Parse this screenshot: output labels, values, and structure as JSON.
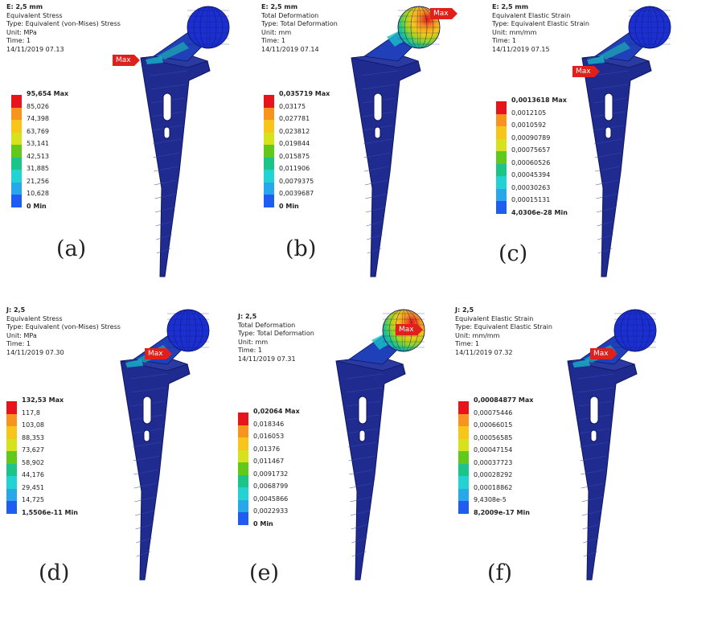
{
  "colors": {
    "legend": [
      "#e8141b",
      "#f7941d",
      "#f8c51a",
      "#d6e21c",
      "#62c81c",
      "#1bc58a",
      "#23d3d3",
      "#28a7ea",
      "#1e5cf2",
      "#0d22d8"
    ],
    "metal": "#1f2b8e",
    "mesh": "#3a49b3"
  },
  "panels": [
    {
      "id": "a",
      "header": [
        "E: 2,5 mm",
        "Equivalent Stress",
        "Type: Equivalent (von-Mises) Stress",
        "Unit: MPa",
        "Time: 1",
        "14/11/2019 07.13"
      ],
      "values": [
        "95,654 Max",
        "85,026",
        "74,398",
        "63,769",
        "53,141",
        "42,513",
        "31,885",
        "21,256",
        "10,628",
        "0 Min"
      ],
      "max_tag": "Max",
      "label": "(a)",
      "head_style": "blue"
    },
    {
      "id": "b",
      "header": [
        "E: 2,5 mm",
        "Total Deformation",
        "Type: Total Deformation",
        "Unit: mm",
        "Time: 1",
        "14/11/2019 07.14"
      ],
      "values": [
        "0,035719 Max",
        "0,03175",
        "0,027781",
        "0,023812",
        "0,019844",
        "0,015875",
        "0,011906",
        "0,0079375",
        "0,0039687",
        "0 Min"
      ],
      "max_tag": "Max",
      "label": "(b)",
      "head_style": "hot"
    },
    {
      "id": "c",
      "header": [
        "E: 2,5 mm",
        "Equivalent Elastic Strain",
        "Type: Equivalent Elastic Strain",
        "Unit: mm/mm",
        "Time: 1",
        "14/11/2019 07.15"
      ],
      "values": [
        "0,0013618 Max",
        "0,0012105",
        "0,0010592",
        "0,00090789",
        "0,00075657",
        "0,00060526",
        "0,00045394",
        "0,00030263",
        "0,00015131",
        "4,0306e-28 Min"
      ],
      "max_tag": "Max",
      "label": "(c)",
      "head_style": "blue"
    },
    {
      "id": "d",
      "header": [
        "J: 2,5",
        "Equivalent Stress",
        "Type: Equivalent (von-Mises) Stress",
        "Unit: MPa",
        "Time: 1",
        "14/11/2019 07.30"
      ],
      "values": [
        "132,53 Max",
        "117,8",
        "103,08",
        "88,353",
        "73,627",
        "58,902",
        "44,176",
        "29,451",
        "14,725",
        "1,5506e-11 Min"
      ],
      "max_tag": "Max",
      "label": "(d)",
      "head_style": "blue"
    },
    {
      "id": "e",
      "header": [
        "J: 2,5",
        "Total Deformation",
        "Type: Total Deformation",
        "Unit: mm",
        "Time: 1",
        "14/11/2019 07.31"
      ],
      "values": [
        "0,02064 Max",
        "0,018346",
        "0,016053",
        "0,01376",
        "0,011467",
        "0,0091732",
        "0,0068799",
        "0,0045866",
        "0,0022933",
        "0 Min"
      ],
      "max_tag": "Max",
      "label": "(e)",
      "head_style": "hot"
    },
    {
      "id": "f",
      "header": [
        "J: 2,5",
        "Equivalent Elastic Strain",
        "Type: Equivalent Elastic Strain",
        "Unit: mm/mm",
        "Time: 1",
        "14/11/2019 07.32"
      ],
      "values": [
        "0,00084877 Max",
        "0,00075446",
        "0,00066015",
        "0,00056585",
        "0,00047154",
        "0,00037723",
        "0,00028292",
        "0,00018862",
        "9,4308e-5",
        "8,2009e-17 Min"
      ],
      "max_tag": "Max",
      "label": "(f)",
      "head_style": "blue"
    }
  ]
}
